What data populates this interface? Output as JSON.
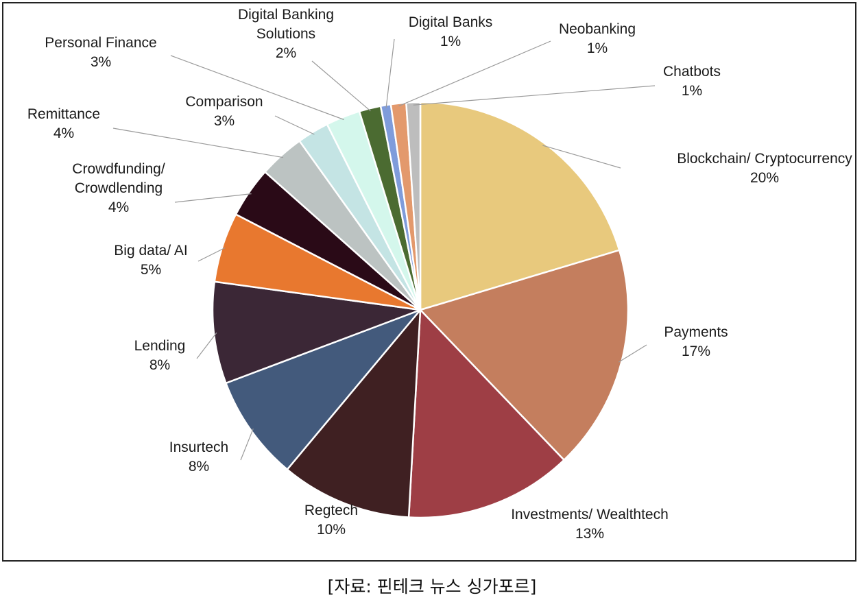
{
  "chart_data": {
    "type": "pie",
    "title": "",
    "slices": [
      {
        "name": "Blockchain/ Cryptocurrency",
        "label_lines": [
          "Blockchain/ Cryptocurrency"
        ],
        "pct_label": "20%",
        "value": 20.6,
        "color": "#E8C97D"
      },
      {
        "name": "Payments",
        "label_lines": [
          "Payments"
        ],
        "pct_label": "17%",
        "value": 17.7,
        "color": "#C47E5E"
      },
      {
        "name": "Investments/ Wealthtech",
        "label_lines": [
          "Investments/ Wealthtech"
        ],
        "pct_label": "13%",
        "value": 13.2,
        "color": "#9E3E45"
      },
      {
        "name": "Regtech",
        "label_lines": [
          "Regtech"
        ],
        "pct_label": "10%",
        "value": 10.3,
        "color": "#3F2022"
      },
      {
        "name": "Insurtech",
        "label_lines": [
          "Insurtech"
        ],
        "pct_label": "8%",
        "value": 8.3,
        "color": "#435A7C"
      },
      {
        "name": "Lending",
        "label_lines": [
          "Lending"
        ],
        "pct_label": "8%",
        "value": 8.0,
        "color": "#3B2736"
      },
      {
        "name": "Big data/ AI",
        "label_lines": [
          "Big data/ AI"
        ],
        "pct_label": "5%",
        "value": 5.5,
        "color": "#E8782F"
      },
      {
        "name": "Crowdfunding/ Crowdlending",
        "label_lines": [
          "Crowdfunding/",
          "Crowdlending"
        ],
        "pct_label": "4%",
        "value": 4.0,
        "color": "#2A0A17"
      },
      {
        "name": "Remittance",
        "label_lines": [
          "Remittance"
        ],
        "pct_label": "4%",
        "value": 3.6,
        "color": "#BCC3C2"
      },
      {
        "name": "Comparison",
        "label_lines": [
          "Comparison"
        ],
        "pct_label": "3%",
        "value": 2.5,
        "color": "#C4E4E4"
      },
      {
        "name": "Personal Finance",
        "label_lines": [
          "Personal Finance"
        ],
        "pct_label": "3%",
        "value": 2.7,
        "color": "#D4F7EC"
      },
      {
        "name": "Digital Banking Solutions",
        "label_lines": [
          "Digital Banking",
          "Solutions"
        ],
        "pct_label": "2%",
        "value": 1.7,
        "color": "#4B6B31"
      },
      {
        "name": "Digital Banks",
        "label_lines": [
          "Digital Banks"
        ],
        "pct_label": "1%",
        "value": 0.8,
        "color": "#7F9CDB"
      },
      {
        "name": "Neobanking",
        "label_lines": [
          "Neobanking"
        ],
        "pct_label": "1%",
        "value": 1.2,
        "color": "#E3996C"
      },
      {
        "name": "Chatbots",
        "label_lines": [
          "Chatbots"
        ],
        "pct_label": "1%",
        "value": 1.1,
        "color": "#BDBDBD"
      }
    ]
  },
  "caption": "[자료: 핀테크 뉴스 싱가포르]"
}
